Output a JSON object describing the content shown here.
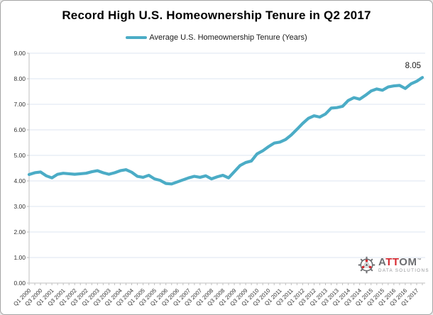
{
  "header": {
    "title": "Record High U.S. Homeownership Tenure in Q2 2017"
  },
  "legend": {
    "label": "Average U.S. Homeownership Tenure (Years)",
    "color": "#4BACC6"
  },
  "logo": {
    "brand_prefix": "A",
    "brand_mid": "TT",
    "brand_suffix": "OM",
    "trademark": "™",
    "subtitle": "DATA SOLUTIONS"
  },
  "chart_data": {
    "type": "line",
    "title": "Record High U.S. Homeownership Tenure in Q2 2017",
    "series_name": "Average U.S. Homeownership Tenure (Years)",
    "xlabel": "",
    "ylabel": "",
    "ylim": [
      0,
      9
    ],
    "yticks": [
      0,
      1,
      2,
      3,
      4,
      5,
      6,
      7,
      8,
      9
    ],
    "ytick_format_decimals": 2,
    "x_label_step": 2,
    "grid": "horizontal",
    "legend_position": "top",
    "line_color": "#4BACC6",
    "gridline_color": "#DCE6F1",
    "axis_color": "#BFBFBF",
    "tick_label_color": "#333333",
    "annotation": {
      "index": 69,
      "text": "8.05"
    },
    "categories": [
      "Q1 2000",
      "Q2 2000",
      "Q3 2000",
      "Q4 2000",
      "Q1 2001",
      "Q2 2001",
      "Q3 2001",
      "Q4 2001",
      "Q1 2002",
      "Q2 2002",
      "Q3 2002",
      "Q4 2002",
      "Q1 2003",
      "Q2 2003",
      "Q3 2003",
      "Q4 2003",
      "Q1 2004",
      "Q2 2004",
      "Q3 2004",
      "Q4 2004",
      "Q1 2005",
      "Q2 2005",
      "Q3 2005",
      "Q4 2005",
      "Q1 2006",
      "Q2 2006",
      "Q3 2006",
      "Q4 2006",
      "Q1 2007",
      "Q2 2007",
      "Q3 2007",
      "Q4 2007",
      "Q1 2008",
      "Q2 2008",
      "Q3 2008",
      "Q4 2008",
      "Q1 2009",
      "Q2 2009",
      "Q3 2009",
      "Q4 2009",
      "Q1 2010",
      "Q2 2010",
      "Q3 2010",
      "Q4 2010",
      "Q1 2011",
      "Q2 2011",
      "Q3 2011",
      "Q4 2011",
      "Q1 2012",
      "Q2 2012",
      "Q3 2012",
      "Q4 2012",
      "Q1 2013",
      "Q2 2013",
      "Q3 2013",
      "Q4 2013",
      "Q1 2014",
      "Q2 2014",
      "Q3 2014",
      "Q4 2014",
      "Q1 2015",
      "Q2 2015",
      "Q3 2015",
      "Q4 2015",
      "Q1 2016",
      "Q2 2016",
      "Q3 2016",
      "Q4 2016",
      "Q1 2017",
      "Q2 2017"
    ],
    "values": [
      4.25,
      4.32,
      4.35,
      4.2,
      4.12,
      4.26,
      4.3,
      4.28,
      4.26,
      4.28,
      4.3,
      4.36,
      4.4,
      4.32,
      4.26,
      4.32,
      4.4,
      4.44,
      4.34,
      4.18,
      4.14,
      4.22,
      4.08,
      4.02,
      3.9,
      3.88,
      3.96,
      4.04,
      4.12,
      4.18,
      4.14,
      4.2,
      4.08,
      4.16,
      4.22,
      4.12,
      4.36,
      4.6,
      4.72,
      4.78,
      5.06,
      5.18,
      5.34,
      5.48,
      5.52,
      5.62,
      5.8,
      6.02,
      6.25,
      6.45,
      6.55,
      6.5,
      6.62,
      6.85,
      6.87,
      6.92,
      7.15,
      7.26,
      7.2,
      7.35,
      7.52,
      7.6,
      7.55,
      7.68,
      7.72,
      7.74,
      7.62,
      7.8,
      7.9,
      8.05
    ]
  }
}
